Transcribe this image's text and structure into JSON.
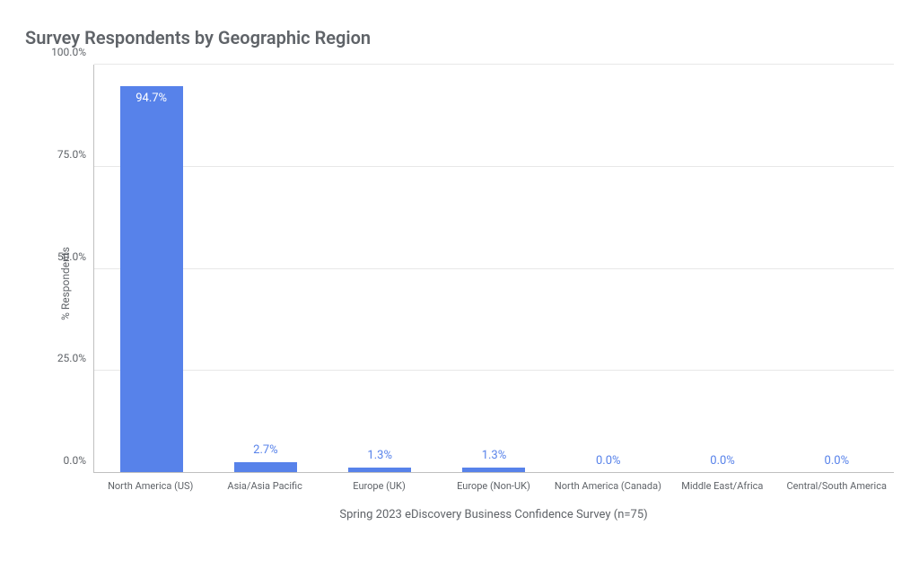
{
  "chart": {
    "type": "bar",
    "title": "Survey Respondents by Geographic Region",
    "title_color": "#5f6368",
    "title_fontsize": 20,
    "y_axis_label": "% Respondents",
    "x_axis_label": "Spring 2023 eDiscovery Business Confidence Survey (n=75)",
    "label_fontsize": 12,
    "ylim": [
      0,
      100
    ],
    "ytick_step": 25,
    "ytick_format_suffix": "%",
    "ytick_decimals": 1,
    "categories": [
      "North America (US)",
      "Asia/Asia Pacific",
      "Europe (UK)",
      "Europe (Non-UK)",
      "North America (Canada)",
      "Middle East/Africa",
      "Central/South America"
    ],
    "values": [
      94.7,
      2.7,
      1.3,
      1.3,
      0.0,
      0.0,
      0.0
    ],
    "value_label_suffix": "%",
    "value_label_decimals": 1,
    "bar_color": "#5782ea",
    "bar_label_color": "#5782ea",
    "bar_label_color_inside": "#ffffff",
    "bar_label_inside_threshold": 50,
    "bar_label_fontsize": 13,
    "bar_width_ratio": 0.55,
    "background_color": "#ffffff",
    "grid_color": "#e8e8e8",
    "axis_line_color": "#c0c0c0",
    "tick_label_color": "#5f6368",
    "tick_fontsize": 11
  }
}
